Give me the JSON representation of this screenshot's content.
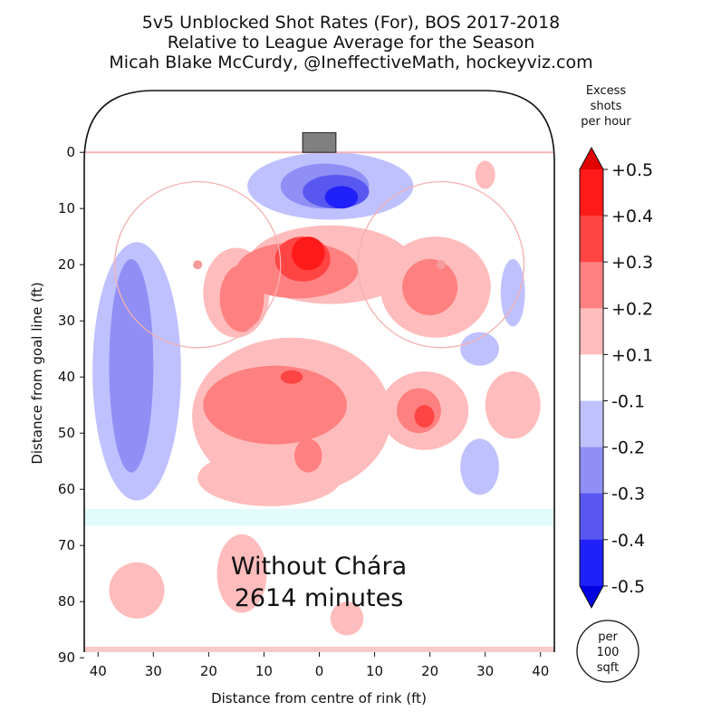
{
  "chart_data": {
    "type": "heatmap",
    "title": [
      "5v5 Unblocked Shot Rates (For), BOS 2017-2018",
      "Relative to League Average for the Season",
      "Micah Blake McCurdy, @IneffectiveMath, hockeyviz.com"
    ],
    "xlabel": "Distance from centre of rink (ft)",
    "ylabel": "Distance from goal line (ft)",
    "xticks": [
      "40",
      "30",
      "20",
      "10",
      "0",
      "10",
      "20",
      "30",
      "40"
    ],
    "yticks": [
      "0",
      "10",
      "20",
      "30",
      "40",
      "50",
      "60",
      "70",
      "80",
      "90"
    ],
    "xlim": [
      -42.5,
      42.5
    ],
    "ylim": [
      89,
      -11
    ],
    "annotation": [
      "Without Chára",
      "2614 minutes"
    ],
    "colorbar": {
      "title": [
        "Excess",
        "shots",
        "per hour"
      ],
      "ticks": [
        "+0.5",
        "+0.4",
        "+0.3",
        "+0.2",
        "+0.1",
        "-0.1",
        "-0.2",
        "-0.3",
        "-0.4",
        "-0.5"
      ],
      "colors_top_to_bottom": [
        "#ff1a1a",
        "#ff4444",
        "#ff8080",
        "#ffbcbc",
        "#ffffff",
        "#bfc1ff",
        "#8f8ff5",
        "#5858f0",
        "#2020f8"
      ],
      "arrow_top": "#e00000",
      "arrow_bottom": "#0000e0"
    },
    "unit_badge": [
      "per",
      "100",
      "sqft"
    ],
    "regions": [
      {
        "kind": "positive",
        "level": 0.1,
        "shape": "ellipse",
        "cx": 2,
        "cy": 20,
        "rx": 15,
        "ry": 7
      },
      {
        "kind": "positive",
        "level": 0.1,
        "shape": "ellipse",
        "cx": -15,
        "cy": 25,
        "rx": 6,
        "ry": 8
      },
      {
        "kind": "positive",
        "level": 0.1,
        "shape": "ellipse",
        "cx": 21,
        "cy": 24,
        "rx": 10,
        "ry": 9
      },
      {
        "kind": "positive",
        "level": 0.1,
        "shape": "ellipse",
        "cx": -5,
        "cy": 47,
        "rx": 18,
        "ry": 14
      },
      {
        "kind": "positive",
        "level": 0.1,
        "shape": "ellipse",
        "cx": -9,
        "cy": 58,
        "rx": 13,
        "ry": 5
      },
      {
        "kind": "positive",
        "level": 0.1,
        "shape": "ellipse",
        "cx": 19,
        "cy": 46,
        "rx": 8,
        "ry": 7
      },
      {
        "kind": "positive",
        "level": 0.1,
        "shape": "ellipse",
        "cx": 35,
        "cy": 45,
        "rx": 5,
        "ry": 6
      },
      {
        "kind": "positive",
        "level": 0.1,
        "shape": "ellipse",
        "cx": 30,
        "cy": 4,
        "rx": 1.8,
        "ry": 2.5
      },
      {
        "kind": "positive",
        "level": 0.1,
        "shape": "ellipse",
        "cx": -33,
        "cy": 78,
        "rx": 5,
        "ry": 5
      },
      {
        "kind": "positive",
        "level": 0.1,
        "shape": "ellipse",
        "cx": -14,
        "cy": 75,
        "rx": 4.5,
        "ry": 7
      },
      {
        "kind": "positive",
        "level": 0.1,
        "shape": "ellipse",
        "cx": 5,
        "cy": 83,
        "rx": 3,
        "ry": 3
      },
      {
        "kind": "positive",
        "level": 0.2,
        "shape": "ellipse",
        "cx": -4,
        "cy": 21,
        "rx": 11,
        "ry": 5
      },
      {
        "kind": "positive",
        "level": 0.2,
        "shape": "ellipse",
        "cx": -14,
        "cy": 26,
        "rx": 4,
        "ry": 6
      },
      {
        "kind": "positive",
        "level": 0.2,
        "shape": "ellipse",
        "cx": 20,
        "cy": 24,
        "rx": 5,
        "ry": 5
      },
      {
        "kind": "positive",
        "level": 0.2,
        "shape": "ellipse",
        "cx": -8,
        "cy": 45,
        "rx": 13,
        "ry": 7
      },
      {
        "kind": "positive",
        "level": 0.2,
        "shape": "ellipse",
        "cx": 18,
        "cy": 46,
        "rx": 4,
        "ry": 4
      },
      {
        "kind": "positive",
        "level": 0.2,
        "shape": "ellipse",
        "cx": -2,
        "cy": 54,
        "rx": 2.5,
        "ry": 3
      },
      {
        "kind": "positive",
        "level": 0.3,
        "shape": "ellipse",
        "cx": -3,
        "cy": 19,
        "rx": 5,
        "ry": 4
      },
      {
        "kind": "positive",
        "level": 0.3,
        "shape": "ellipse",
        "cx": -5,
        "cy": 40,
        "rx": 2,
        "ry": 1.2
      },
      {
        "kind": "positive",
        "level": 0.3,
        "shape": "ellipse",
        "cx": 19,
        "cy": 47,
        "rx": 1.8,
        "ry": 2
      },
      {
        "kind": "positive",
        "level": 0.4,
        "shape": "ellipse",
        "cx": -2,
        "cy": 18,
        "rx": 3,
        "ry": 3
      },
      {
        "kind": "negative",
        "level": -0.1,
        "shape": "ellipse",
        "cx": -33,
        "cy": 39,
        "rx": 8,
        "ry": 23
      },
      {
        "kind": "negative",
        "level": -0.1,
        "shape": "ellipse",
        "cx": 2,
        "cy": 6,
        "rx": 15,
        "ry": 6
      },
      {
        "kind": "negative",
        "level": -0.1,
        "shape": "ellipse",
        "cx": 35,
        "cy": 25,
        "rx": 2.2,
        "ry": 6
      },
      {
        "kind": "negative",
        "level": -0.1,
        "shape": "ellipse",
        "cx": 29,
        "cy": 35,
        "rx": 3.5,
        "ry": 3
      },
      {
        "kind": "negative",
        "level": -0.1,
        "shape": "ellipse",
        "cx": 29,
        "cy": 56,
        "rx": 3.5,
        "ry": 5
      },
      {
        "kind": "negative",
        "level": -0.2,
        "shape": "ellipse",
        "cx": -34,
        "cy": 38,
        "rx": 4,
        "ry": 19
      },
      {
        "kind": "negative",
        "level": -0.2,
        "shape": "ellipse",
        "cx": 1,
        "cy": 6,
        "rx": 8,
        "ry": 4
      },
      {
        "kind": "negative",
        "level": -0.3,
        "shape": "ellipse",
        "cx": 3,
        "cy": 7,
        "rx": 6,
        "ry": 3
      },
      {
        "kind": "negative",
        "level": -0.4,
        "shape": "ellipse",
        "cx": 4,
        "cy": 8,
        "rx": 3,
        "ry": 2
      },
      {
        "kind": "neutral",
        "level": 0.0,
        "shape": "ellipse",
        "cx": -7,
        "cy": 31,
        "rx": 2,
        "ry": 2
      }
    ]
  }
}
